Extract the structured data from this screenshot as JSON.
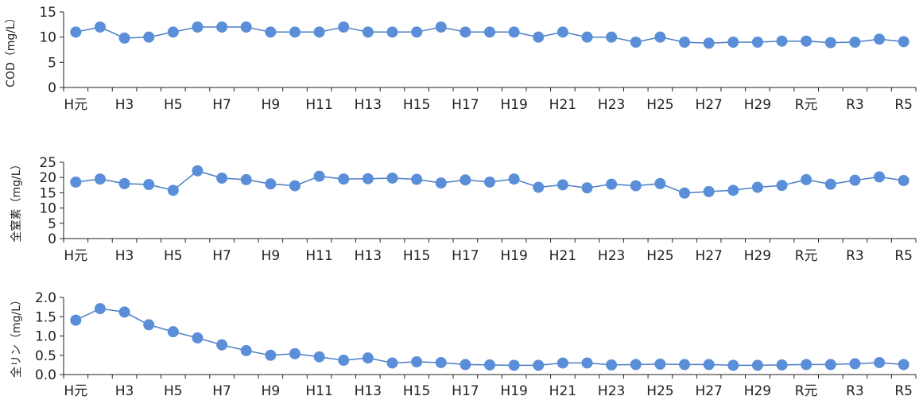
{
  "theme": {
    "line_color": "#4A7EC4",
    "marker_color": "#5B8ED8",
    "axis_color": "#222222"
  },
  "chart_data": [
    {
      "type": "line",
      "ylabel": "COD（mg/L）",
      "ylim": [
        0,
        15
      ],
      "yticks": [
        "0",
        "5",
        "10",
        "15"
      ],
      "ytick_values": [
        0,
        5,
        10,
        15
      ],
      "x_tick_labels": [
        "H元",
        "H3",
        "H5",
        "H7",
        "H9",
        "H11",
        "H13",
        "H15",
        "H17",
        "H19",
        "H21",
        "H23",
        "H25",
        "H27",
        "H29",
        "R元",
        "R3",
        "R5"
      ],
      "values": [
        11,
        12,
        9.8,
        10,
        11,
        12,
        12,
        12,
        11,
        11,
        11,
        12,
        11,
        11,
        11,
        12,
        11,
        11,
        11,
        10,
        11,
        10,
        10,
        9,
        10,
        9,
        8.8,
        9,
        9,
        9.2,
        9.2,
        8.9,
        9,
        9.6,
        9.1
      ]
    },
    {
      "type": "line",
      "ylabel": "全窒素（mg/L）",
      "ylim": [
        0,
        25
      ],
      "yticks": [
        "0",
        "5",
        "10",
        "15",
        "20",
        "25"
      ],
      "ytick_values": [
        0,
        5,
        10,
        15,
        20,
        25
      ],
      "x_tick_labels": [
        "H元",
        "H3",
        "H5",
        "H7",
        "H9",
        "H11",
        "H13",
        "H15",
        "H17",
        "H19",
        "H21",
        "H23",
        "H25",
        "H27",
        "H29",
        "R元",
        "R3",
        "R5"
      ],
      "values": [
        18.5,
        19.5,
        18,
        17.7,
        15.8,
        22.2,
        19.8,
        19.3,
        17.9,
        17.3,
        20.4,
        19.5,
        19.6,
        19.8,
        19.4,
        18.2,
        19.2,
        18.5,
        19.5,
        16.8,
        17.6,
        16.6,
        17.8,
        17.3,
        18,
        14.9,
        15.4,
        15.8,
        16.8,
        17.4,
        19.3,
        17.8,
        19.1,
        20.2,
        19
      ]
    },
    {
      "type": "line",
      "ylabel": "全リン（mg/L）",
      "ylim": [
        0,
        2.0
      ],
      "yticks": [
        "0.0",
        "0.5",
        "1.0",
        "1.5",
        "2.0"
      ],
      "ytick_values": [
        0,
        0.5,
        1.0,
        1.5,
        2.0
      ],
      "x_tick_labels": [
        "H元",
        "H3",
        "H5",
        "H7",
        "H9",
        "H11",
        "H13",
        "H15",
        "H17",
        "H19",
        "H21",
        "H23",
        "H25",
        "H27",
        "H29",
        "R元",
        "R3",
        "R5"
      ],
      "values": [
        1.41,
        1.71,
        1.62,
        1.29,
        1.11,
        0.95,
        0.77,
        0.62,
        0.5,
        0.54,
        0.46,
        0.37,
        0.43,
        0.3,
        0.33,
        0.31,
        0.26,
        0.25,
        0.24,
        0.24,
        0.3,
        0.3,
        0.25,
        0.26,
        0.27,
        0.26,
        0.26,
        0.24,
        0.24,
        0.25,
        0.26,
        0.26,
        0.28,
        0.31,
        0.26
      ]
    }
  ]
}
